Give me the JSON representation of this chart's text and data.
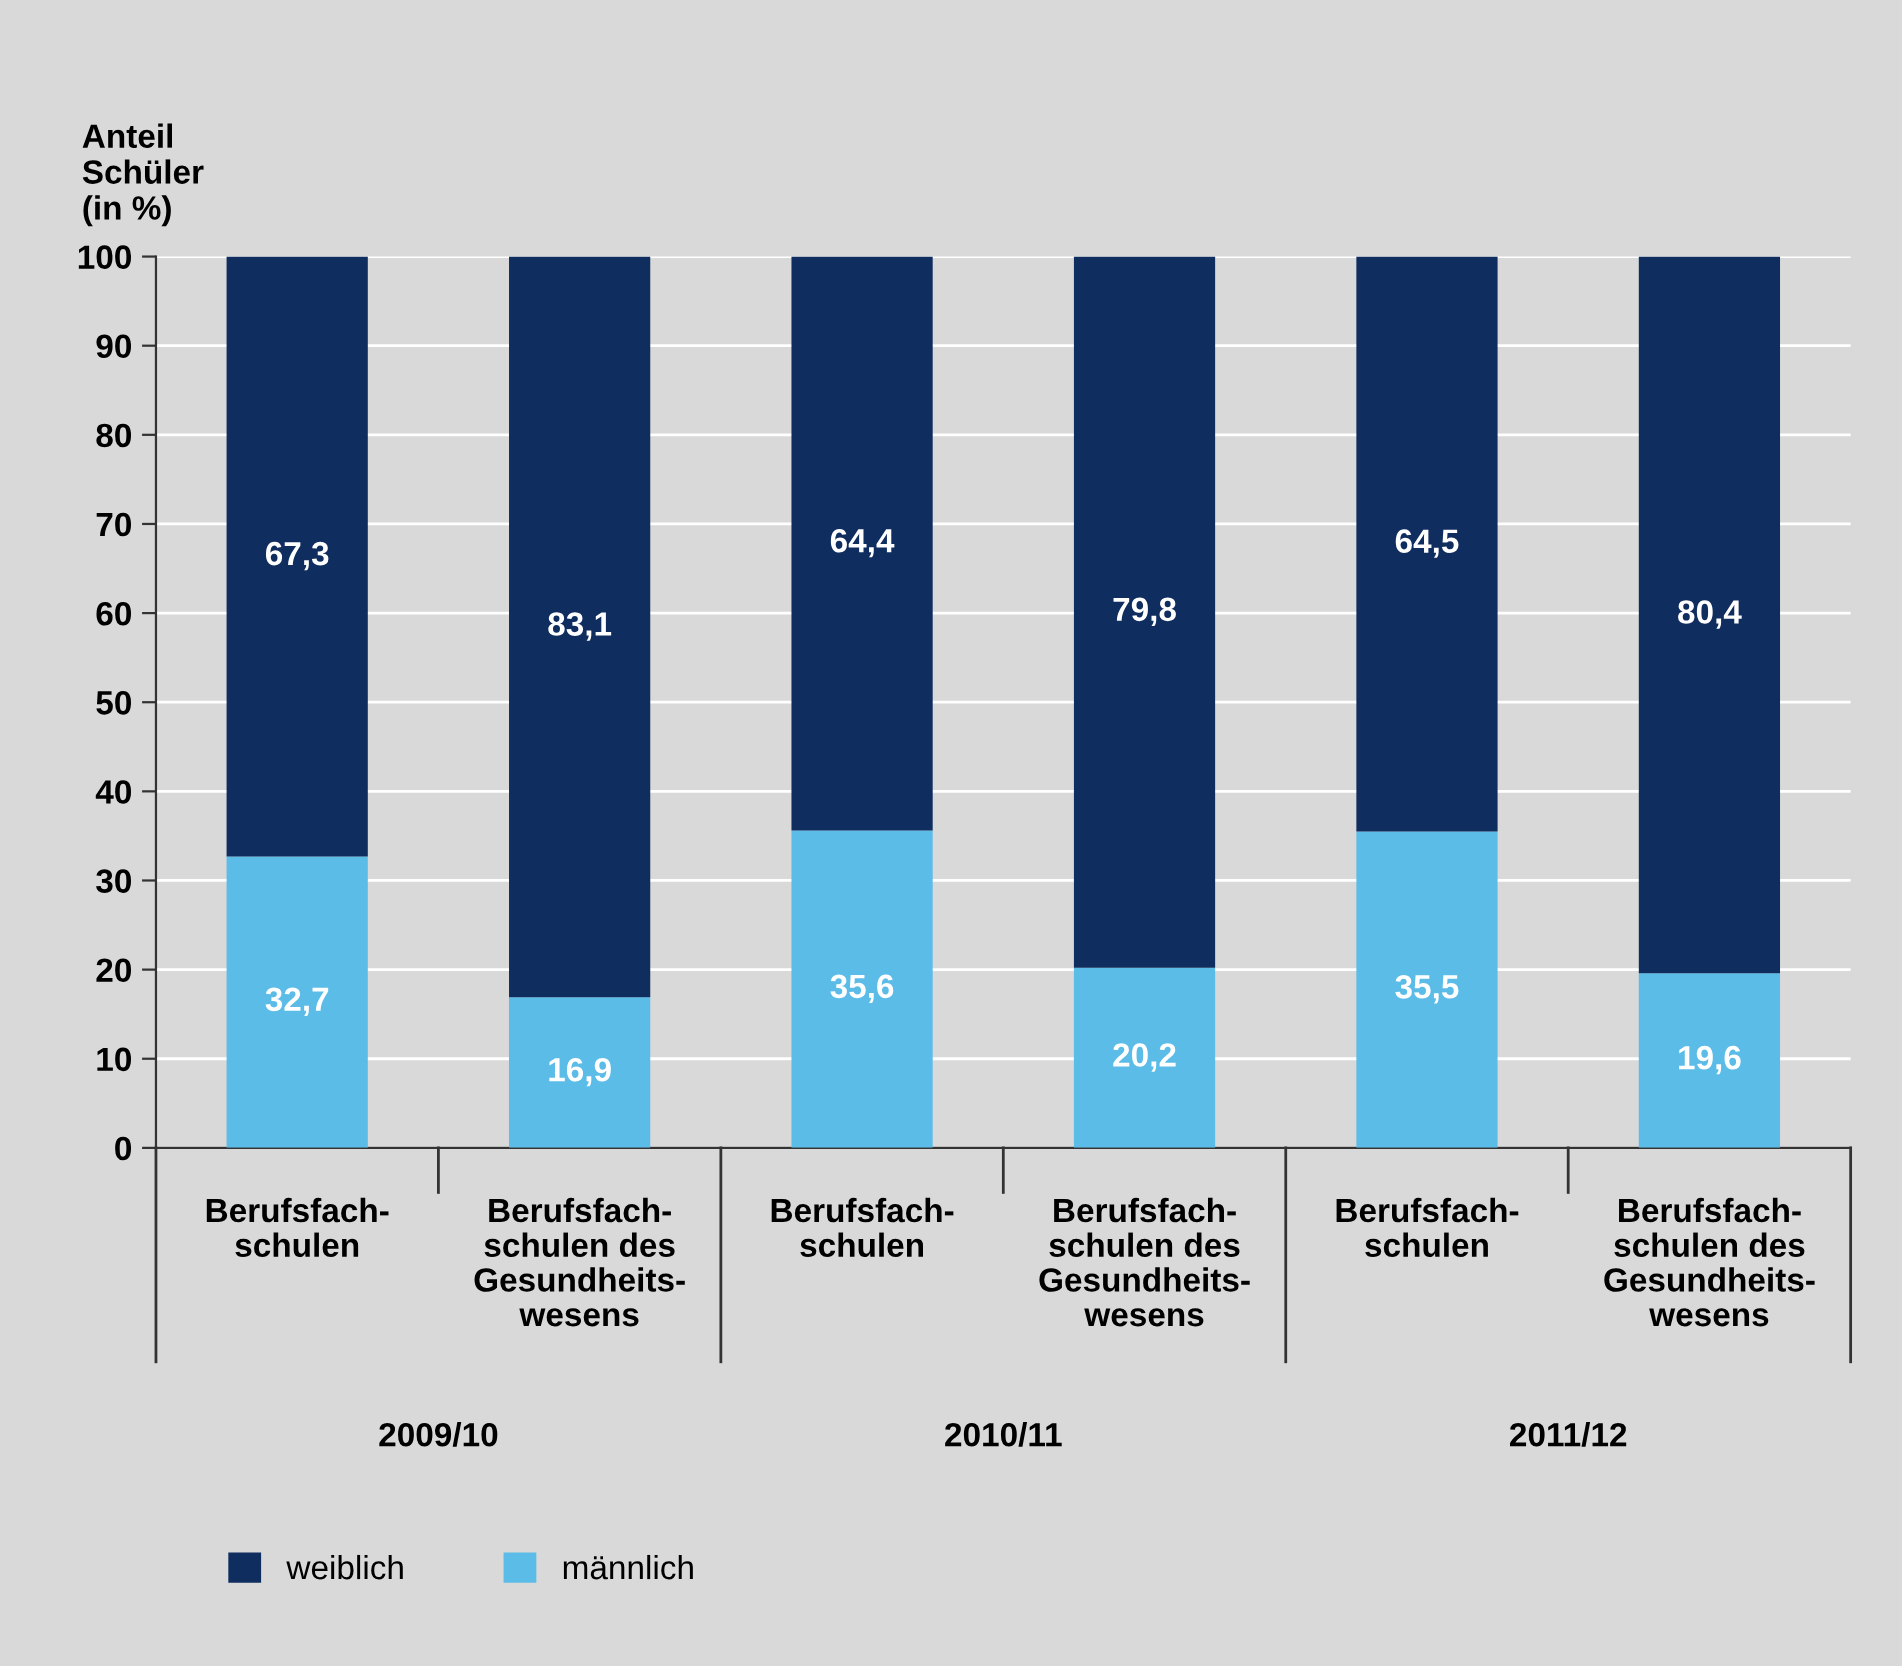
{
  "chart_data": {
    "type": "bar",
    "stacked": true,
    "ylabel": "Anteil\nSchüler\n(in %)",
    "categories": [
      "Berufsfach-\nschulen",
      "Berufsfach-\nschulen des\nGesundheits-\nwesens",
      "Berufsfach-\nschulen",
      "Berufsfach-\nschulen des\nGesundheits-\nwesens",
      "Berufsfach-\nschulen",
      "Berufsfach-\nschulen des\nGesundheits-\nwesens"
    ],
    "series": [
      {
        "name": "männlich",
        "color": "#5bbce8",
        "values": [
          32.7,
          16.9,
          35.6,
          20.2,
          35.5,
          19.6
        ],
        "value_labels": [
          "32,7",
          "16,9",
          "35,6",
          "20,2",
          "35,5",
          "19,6"
        ]
      },
      {
        "name": "weiblich",
        "color": "#0f2d5e",
        "values": [
          67.3,
          83.1,
          64.4,
          79.8,
          64.5,
          80.4
        ],
        "value_labels": [
          "67,3",
          "83,1",
          "64,4",
          "79,8",
          "64,5",
          "80,4"
        ]
      }
    ],
    "annotations": [
      "2009/10",
      "2010/11",
      "2011/12"
    ],
    "ylim": [
      0,
      100
    ],
    "yticks": [
      0,
      10,
      20,
      30,
      40,
      50,
      60,
      70,
      80,
      90,
      100
    ],
    "grid": "y",
    "legend": "bottom left"
  }
}
